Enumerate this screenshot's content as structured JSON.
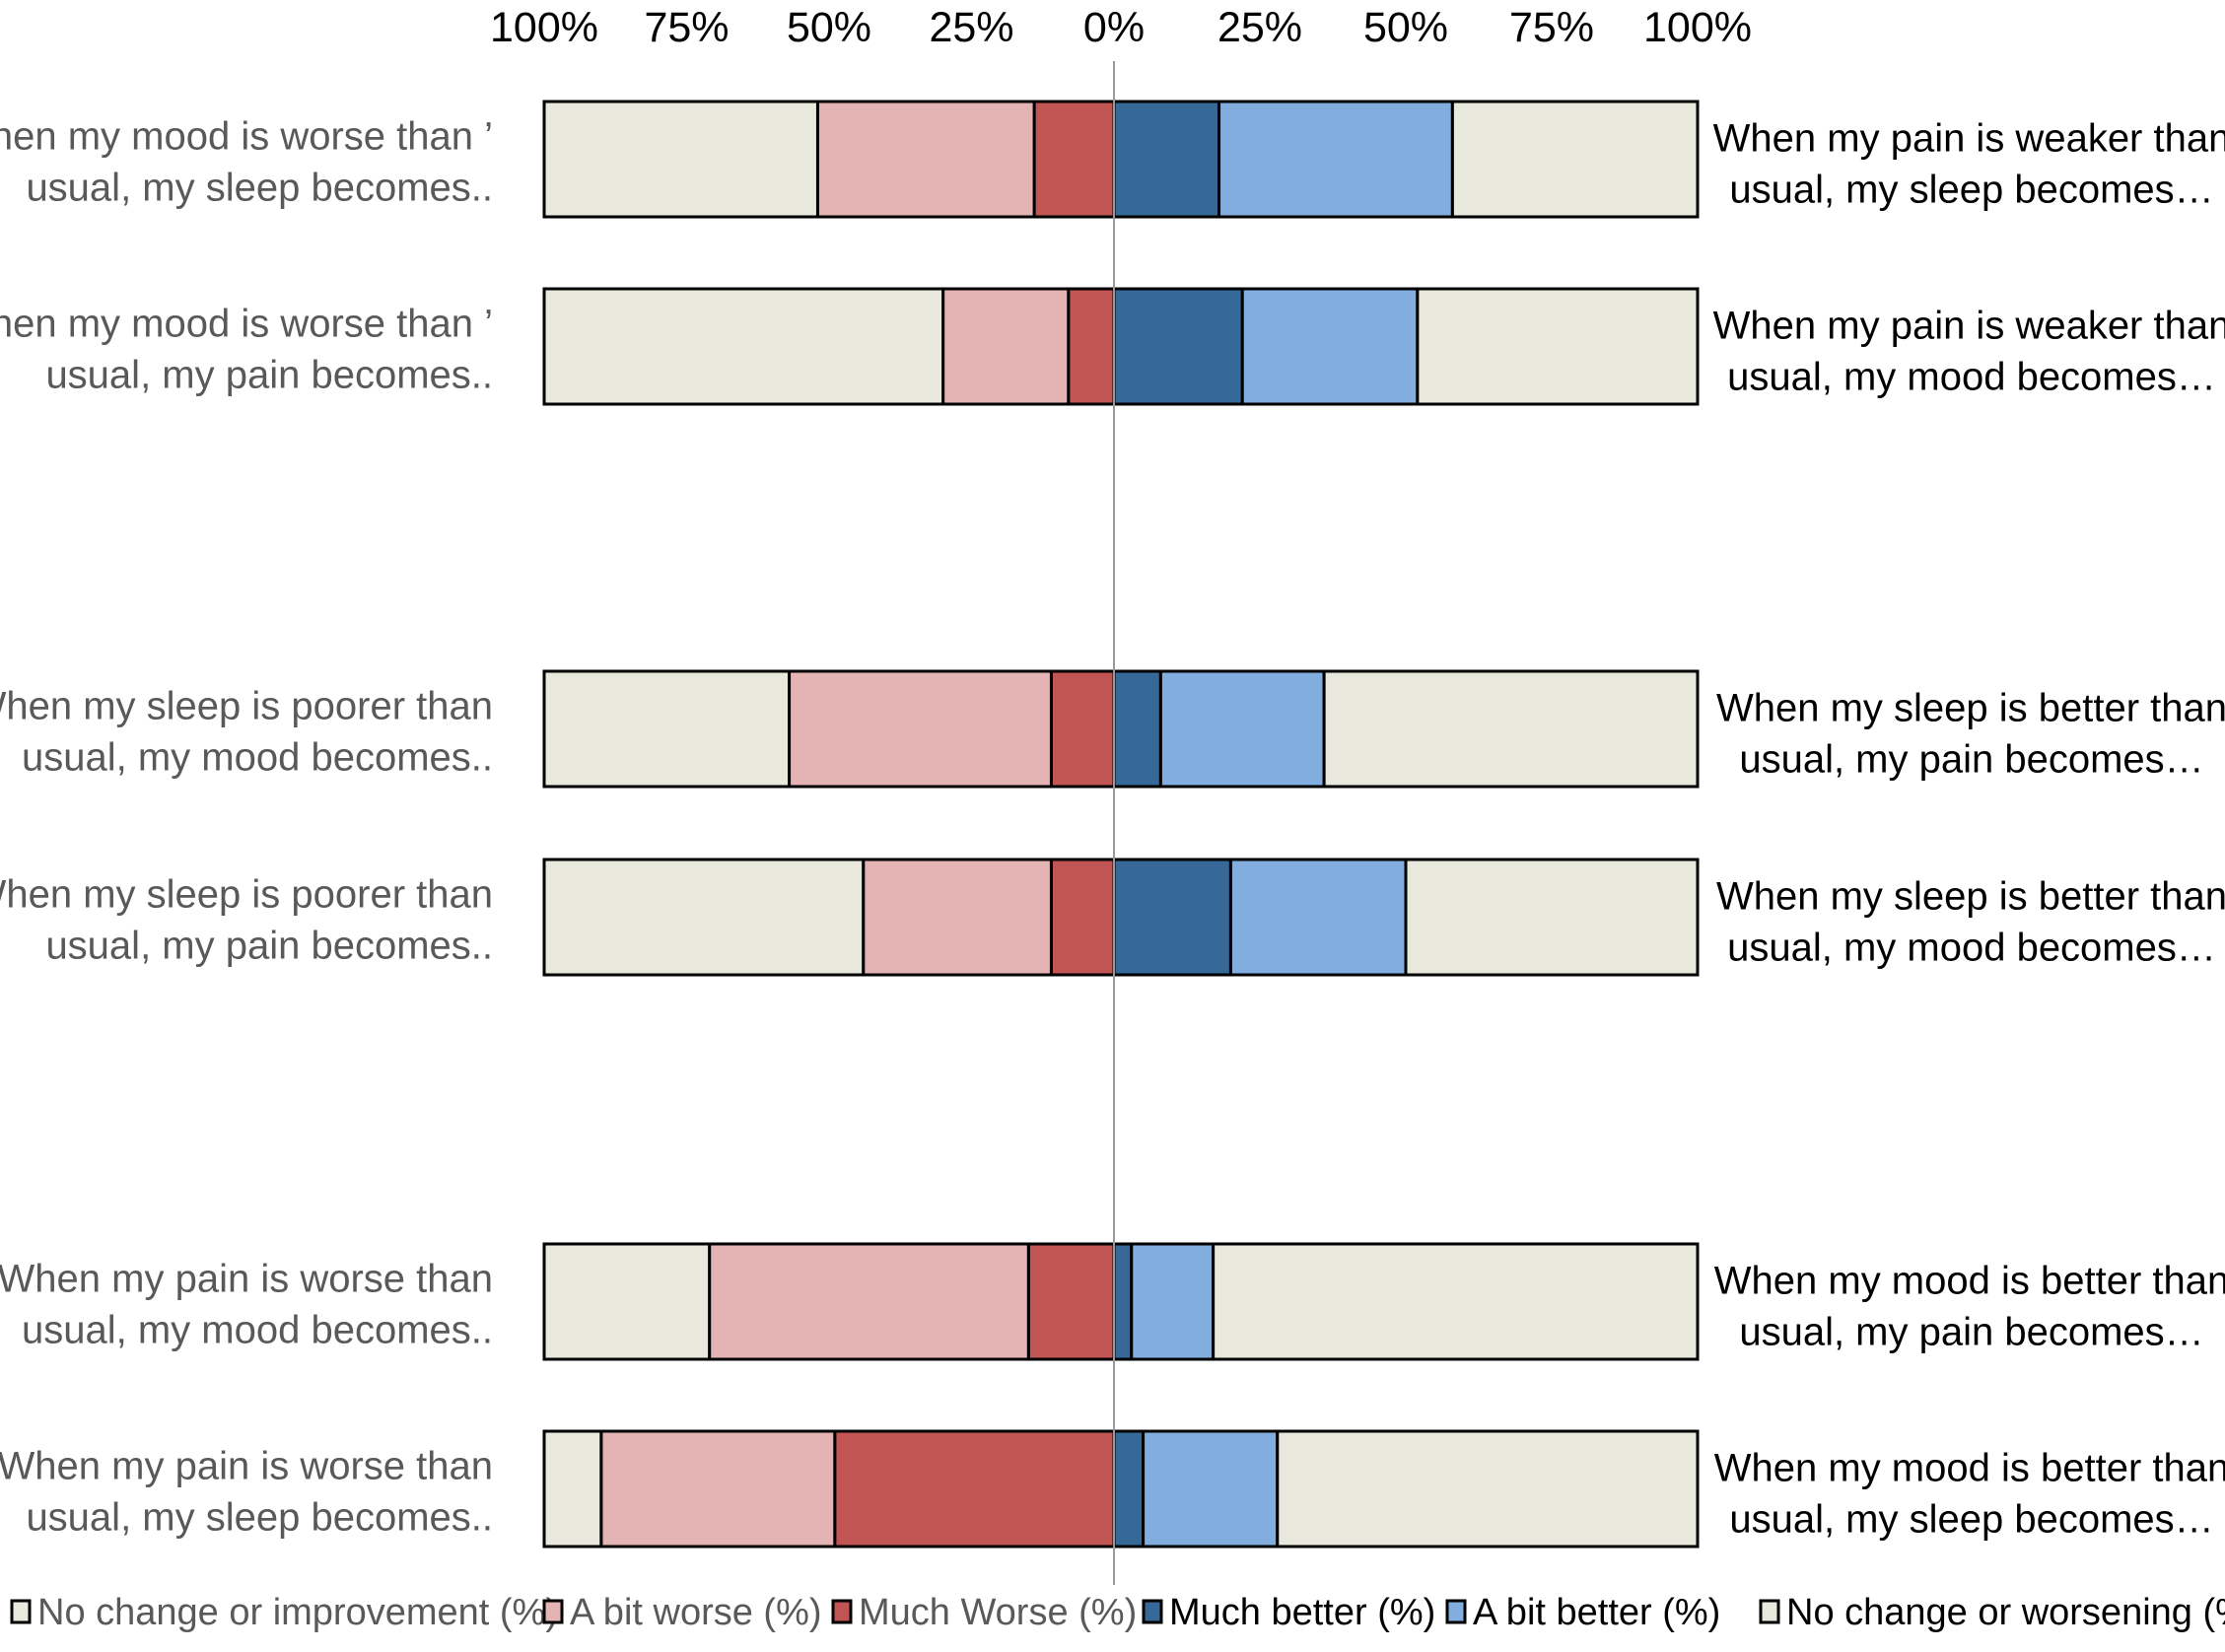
{
  "chart_data": {
    "type": "bar",
    "subtype": "diverging stacked horizontal bar",
    "title": "",
    "axis_ticks_left": [
      "100%",
      "75%",
      "50%",
      "25%",
      "0%"
    ],
    "axis_ticks_right": [
      "25%",
      "50%",
      "75%",
      "100%"
    ],
    "xlim": [
      -100,
      100
    ],
    "colors": {
      "no_change": "#e8e8dc",
      "a_bit_worse": "#e4b3b3",
      "much_worse": "#c05554",
      "much_better": "#366898",
      "a_bit_better": "#82aedf",
      "outline": "#000000",
      "center_line": "#999999"
    },
    "legend": [
      {
        "label": "No change or improvement (%)",
        "color": "#e8e8dc",
        "side": "left"
      },
      {
        "label": "A bit worse (%)",
        "color": "#e4b3b3",
        "side": "left"
      },
      {
        "label": "Much Worse (%)",
        "color": "#c05554",
        "side": "left"
      },
      {
        "label": "Much better (%)",
        "color": "#366898",
        "side": "right"
      },
      {
        "label": "A bit better (%)",
        "color": "#82aedf",
        "side": "right"
      },
      {
        "label": "No change or worsening (%",
        "color": "#e8e8dc",
        "side": "right"
      }
    ],
    "rows": [
      {
        "left_label": [
          "When my mood is worse than ’",
          "usual, my sleep becomes.."
        ],
        "right_label": [
          "When my pain is weaker than",
          "usual, my sleep becomes…"
        ],
        "left": {
          "much_worse": 14,
          "a_bit_worse": 38,
          "no_change": 48
        },
        "right": {
          "much_better": 18,
          "a_bit_better": 40,
          "no_change": 42
        }
      },
      {
        "left_label": [
          "When my mood is worse than ’",
          "usual, my pain becomes.."
        ],
        "right_label": [
          "When my pain is weaker than",
          "usual, my mood becomes…"
        ],
        "left": {
          "much_worse": 8,
          "a_bit_worse": 22,
          "no_change": 70
        },
        "right": {
          "much_better": 22,
          "a_bit_better": 30,
          "no_change": 48
        }
      },
      {
        "left_label": [
          "When my sleep is poorer than",
          "usual, my mood becomes.."
        ],
        "right_label": [
          "When my sleep is better than",
          "usual, my pain becomes…"
        ],
        "left": {
          "much_worse": 11,
          "a_bit_worse": 46,
          "no_change": 43
        },
        "right": {
          "much_better": 8,
          "a_bit_better": 28,
          "no_change": 64
        }
      },
      {
        "left_label": [
          "When my sleep is poorer than",
          "usual, my pain becomes.."
        ],
        "right_label": [
          "When my sleep is better than",
          "usual, my mood becomes…"
        ],
        "left": {
          "much_worse": 11,
          "a_bit_worse": 33,
          "no_change": 56
        },
        "right": {
          "much_better": 20,
          "a_bit_better": 30,
          "no_change": 50
        }
      },
      {
        "left_label": [
          "When my pain is worse than",
          "usual, my mood becomes.."
        ],
        "right_label": [
          "When my mood is better than",
          "usual, my pain becomes…"
        ],
        "left": {
          "much_worse": 15,
          "a_bit_worse": 56,
          "no_change": 29
        },
        "right": {
          "much_better": 3,
          "a_bit_better": 14,
          "no_change": 83
        }
      },
      {
        "left_label": [
          "When my pain is worse than",
          "usual, my sleep becomes.."
        ],
        "right_label": [
          "When my mood is better than",
          "usual, my sleep becomes…"
        ],
        "left": {
          "much_worse": 49,
          "a_bit_worse": 41,
          "no_change": 10
        },
        "right": {
          "much_better": 5,
          "a_bit_better": 23,
          "no_change": 72
        }
      }
    ]
  }
}
